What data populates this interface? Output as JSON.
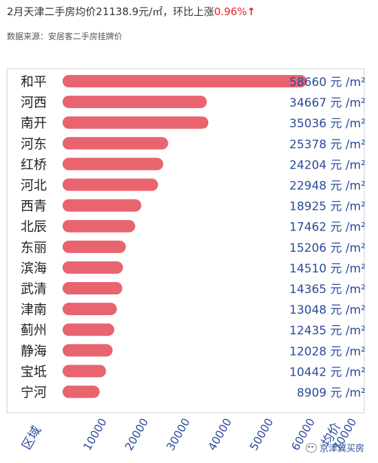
{
  "header": {
    "title_prefix": "2月天津二手房均价21138.9元/㎡，环比上涨",
    "title_change": "0.96%",
    "title_arrow": "↑",
    "source": "数据来源：安居客二手房挂牌价"
  },
  "watermark": {
    "icon": "wechat-icon",
    "text": "京津冀买房"
  },
  "colors": {
    "bar": "#e8646f",
    "axis": "#2b4a9b",
    "highlight": "#e0242b"
  },
  "chart_data": {
    "type": "bar",
    "orientation": "horizontal",
    "categories": [
      "和平",
      "河西",
      "南开",
      "河东",
      "红桥",
      "河北",
      "西青",
      "北辰",
      "东丽",
      "滨海",
      "武清",
      "津南",
      "蓟州",
      "静海",
      "宝坻",
      "宁河"
    ],
    "values": [
      58660,
      34667,
      35036,
      25378,
      24204,
      22948,
      18925,
      17462,
      15206,
      14510,
      14365,
      13048,
      12435,
      12028,
      10442,
      8909
    ],
    "unit": "元 /m²",
    "xlabel": "均价",
    "ylabel": "区域",
    "x_ticks": [
      10000,
      20000,
      30000,
      40000,
      50000,
      60000,
      70000
    ],
    "xlim": [
      0,
      70000
    ],
    "grid": false,
    "legend": "none"
  }
}
